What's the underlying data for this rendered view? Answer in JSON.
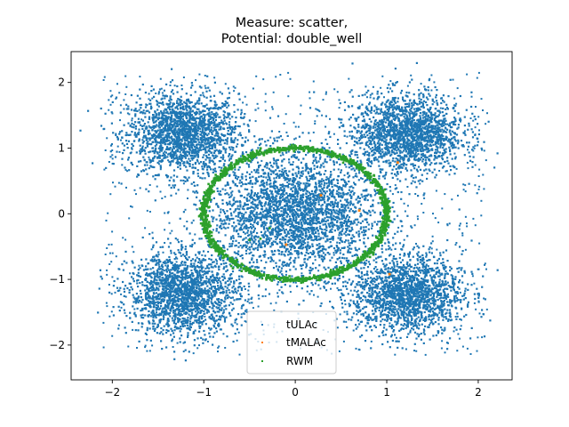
{
  "chart_data": {
    "type": "scatter",
    "title": [
      "Measure: scatter,",
      "Potential: double_well"
    ],
    "xlabel": "",
    "ylabel": "",
    "xlim": [
      -2.45,
      2.37
    ],
    "ylim": [
      -2.53,
      2.47
    ],
    "xticks": [
      -2,
      -1,
      0,
      1,
      2
    ],
    "xtick_labels": [
      "−2",
      "−1",
      "0",
      "1",
      "2"
    ],
    "yticks": [
      -2,
      -1,
      0,
      1,
      2
    ],
    "ytick_labels": [
      "−2",
      "−1",
      "0",
      "1",
      "2"
    ],
    "grid": false,
    "legend_position": "lower center",
    "series": [
      {
        "name": "tULAc",
        "color": "#1f77b4",
        "marker": "dot",
        "description_clusters": [
          {
            "center": [
              -1.22,
              1.22
            ],
            "spread": 0.3
          },
          {
            "center": [
              1.22,
              1.22
            ],
            "spread": 0.3
          },
          {
            "center": [
              -1.22,
              -1.22
            ],
            "spread": 0.3
          },
          {
            "center": [
              1.22,
              -1.22
            ],
            "spread": 0.3
          },
          {
            "center": [
              0.0,
              0.0
            ],
            "spread": 0.45
          }
        ]
      },
      {
        "name": "tMALAc",
        "color": "#ff7f0e",
        "marker": "dot",
        "points": [
          [
            0.28,
            0.28
          ],
          [
            0.7,
            0.05
          ],
          [
            -0.1,
            -0.47
          ],
          [
            1.03,
            -0.92
          ],
          [
            1.12,
            0.78
          ]
        ]
      },
      {
        "name": "RWM",
        "color": "#2ca02c",
        "marker": "dot",
        "ring": {
          "center": [
            0.0,
            0.0
          ],
          "rx": 1.0,
          "ry": 1.0
        },
        "points": [
          [
            -0.38,
            -0.38
          ],
          [
            -0.28,
            -0.22
          ],
          [
            -0.5,
            -0.4
          ]
        ]
      }
    ]
  }
}
